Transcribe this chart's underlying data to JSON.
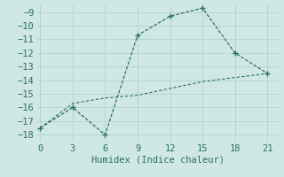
{
  "x": [
    0,
    3,
    6,
    9,
    12,
    15,
    18,
    21
  ],
  "y_zigzag": [
    -17.5,
    -16.0,
    -18.0,
    -10.7,
    -9.3,
    -8.7,
    -12.0,
    -13.5
  ],
  "y_smooth": [
    -17.5,
    -15.7,
    -15.3,
    -15.1,
    -14.6,
    -14.1,
    -13.8,
    -13.5
  ],
  "line_color": "#2a6e65",
  "bg_color": "#cfe8e5",
  "grid_color": "#b8d4d0",
  "xlabel": "Humidex (Indice chaleur)",
  "ylim": [
    -18.5,
    -8.5
  ],
  "xlim": [
    -0.3,
    22.0
  ],
  "yticks": [
    -9,
    -10,
    -11,
    -12,
    -13,
    -14,
    -15,
    -16,
    -17,
    -18
  ],
  "xticks": [
    0,
    3,
    6,
    9,
    12,
    15,
    18,
    21
  ],
  "label_fontsize": 7.5,
  "tick_fontsize": 7.5
}
